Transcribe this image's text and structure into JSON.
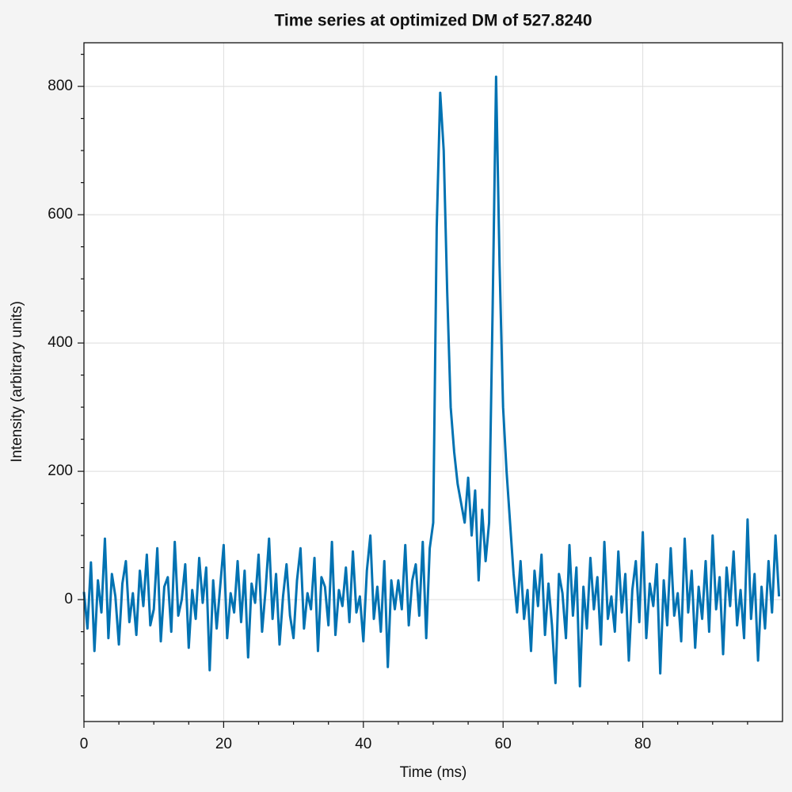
{
  "chart_data": {
    "type": "line",
    "title": "Time series at optimized DM of 527.8240",
    "x_label": "Time (ms)",
    "y_label": "Intensity (arbitrary units)",
    "xlim": [
      0,
      100
    ],
    "ylim": [
      -190,
      868
    ],
    "xticks": [
      0,
      20,
      40,
      60,
      80
    ],
    "yticks": [
      0,
      200,
      400,
      600,
      800
    ],
    "xminorticks": [
      5,
      10,
      15,
      25,
      30,
      35,
      45,
      50,
      55,
      65,
      70,
      75,
      85,
      90,
      95
    ],
    "yminorticks": [
      -150,
      -100,
      -50,
      50,
      100,
      150,
      250,
      300,
      350,
      450,
      500,
      550,
      650,
      700,
      750,
      850
    ],
    "grid": true,
    "x": [
      0,
      0.5,
      1,
      1.5,
      2,
      2.5,
      3,
      3.5,
      4,
      4.5,
      5,
      5.5,
      6,
      6.5,
      7,
      7.5,
      8,
      8.5,
      9,
      9.5,
      10,
      10.5,
      11,
      11.5,
      12,
      12.5,
      13,
      13.5,
      14,
      14.5,
      15,
      15.5,
      16,
      16.5,
      17,
      17.5,
      18,
      18.5,
      19,
      19.5,
      20,
      20.5,
      21,
      21.5,
      22,
      22.5,
      23,
      23.5,
      24,
      24.5,
      25,
      25.5,
      26,
      26.5,
      27,
      27.5,
      28,
      28.5,
      29,
      29.5,
      30,
      30.5,
      31,
      31.5,
      32,
      32.5,
      33,
      33.5,
      34,
      34.5,
      35,
      35.5,
      36,
      36.5,
      37,
      37.5,
      38,
      38.5,
      39,
      39.5,
      40,
      40.5,
      41,
      41.5,
      42,
      42.5,
      43,
      43.5,
      44,
      44.5,
      45,
      45.5,
      46,
      46.5,
      47,
      47.5,
      48,
      48.5,
      49,
      49.5,
      50,
      50.5,
      51,
      51.5,
      52,
      52.5,
      53,
      53.5,
      54,
      54.5,
      55,
      55.5,
      56,
      56.5,
      57,
      57.5,
      58,
      58.5,
      59,
      59.5,
      60,
      60.5,
      61,
      61.5,
      62,
      62.5,
      63,
      63.5,
      64,
      64.5,
      65,
      65.5,
      66,
      66.5,
      67,
      67.5,
      68,
      68.5,
      69,
      69.5,
      70,
      70.5,
      71,
      71.5,
      72,
      72.5,
      73,
      73.5,
      74,
      74.5,
      75,
      75.5,
      76,
      76.5,
      77,
      77.5,
      78,
      78.5,
      79,
      79.5,
      80,
      80.5,
      81,
      81.5,
      82,
      82.5,
      83,
      83.5,
      84,
      84.5,
      85,
      85.5,
      86,
      86.5,
      87,
      87.5,
      88,
      88.5,
      89,
      89.5,
      90,
      90.5,
      91,
      91.5,
      92,
      92.5,
      93,
      93.5,
      94,
      94.5,
      95,
      95.5,
      96,
      96.5,
      97,
      97.5,
      98,
      98.5,
      99,
      99.5
    ],
    "series": [
      {
        "color": "#0072b2",
        "values": [
          12,
          -45,
          58,
          -80,
          30,
          -20,
          95,
          -60,
          40,
          5,
          -70,
          25,
          60,
          -35,
          10,
          -55,
          45,
          -10,
          70,
          -40,
          -15,
          80,
          -65,
          20,
          35,
          -50,
          90,
          -25,
          0,
          55,
          -75,
          15,
          -30,
          65,
          -5,
          50,
          -110,
          30,
          -45,
          20,
          85,
          -60,
          10,
          -20,
          60,
          -35,
          45,
          -90,
          25,
          -5,
          70,
          -50,
          15,
          95,
          -30,
          40,
          -70,
          5,
          55,
          -25,
          -60,
          30,
          80,
          -45,
          10,
          -15,
          65,
          -80,
          35,
          20,
          -40,
          90,
          -55,
          15,
          -10,
          50,
          -35,
          75,
          -20,
          5,
          -65,
          45,
          100,
          -30,
          20,
          -50,
          60,
          -105,
          30,
          -15,
          30,
          -15,
          85,
          -40,
          30,
          55,
          -25,
          90,
          -60,
          80,
          120,
          580,
          790,
          700,
          480,
          300,
          230,
          180,
          150,
          120,
          190,
          100,
          170,
          30,
          140,
          60,
          120,
          450,
          815,
          520,
          300,
          200,
          120,
          40,
          -20,
          60,
          -30,
          15,
          -80,
          45,
          -10,
          70,
          -55,
          25,
          -40,
          -130,
          40,
          10,
          -60,
          85,
          -25,
          50,
          -135,
          20,
          -45,
          65,
          -15,
          35,
          -70,
          90,
          -30,
          5,
          -50,
          75,
          -20,
          40,
          -95,
          15,
          60,
          -35,
          105,
          -60,
          25,
          -10,
          55,
          -115,
          30,
          -40,
          80,
          -25,
          10,
          -65,
          95,
          -20,
          45,
          -75,
          20,
          -30,
          60,
          -50,
          100,
          -15,
          35,
          -85,
          50,
          -10,
          75,
          -40,
          15,
          -60,
          125,
          -30,
          40,
          -95,
          20,
          -45,
          60,
          -20,
          100,
          5
        ]
      }
    ]
  }
}
